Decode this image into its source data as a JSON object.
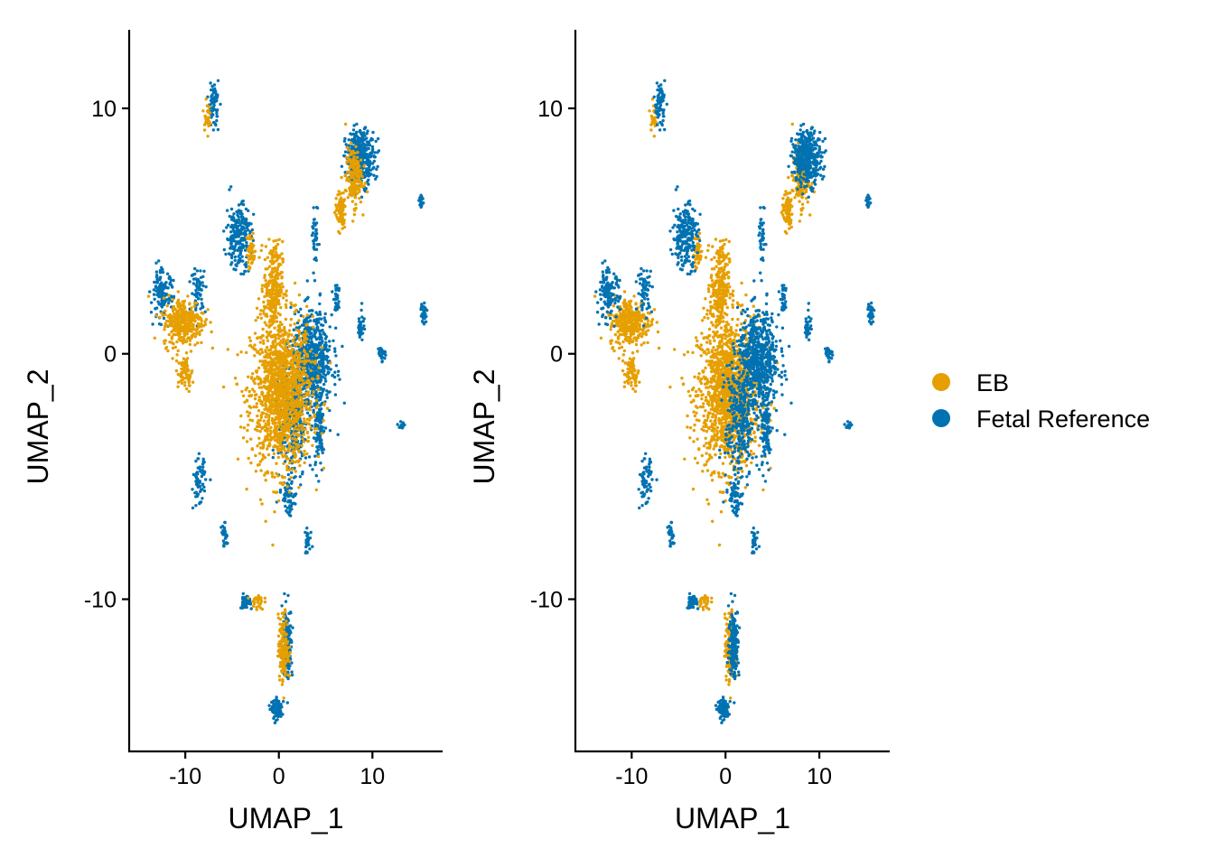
{
  "chart_data": [
    {
      "type": "scatter",
      "title": "",
      "xlabel": "UMAP_1",
      "ylabel": "UMAP_2",
      "xlim": [
        -16,
        17.5
      ],
      "ylim": [
        -16.2,
        13.2
      ],
      "xticks": [
        -10,
        0,
        10
      ],
      "yticks": [
        -10,
        0,
        10
      ],
      "draw_order": [
        "Fetal Reference",
        "EB"
      ],
      "grid": false,
      "legend": "none"
    },
    {
      "type": "scatter",
      "title": "",
      "xlabel": "UMAP_1",
      "ylabel": "UMAP_2",
      "xlim": [
        -16,
        17.5
      ],
      "ylim": [
        -16.2,
        13.2
      ],
      "xticks": [
        -10,
        0,
        10
      ],
      "yticks": [
        -10,
        0,
        10
      ],
      "draw_order": [
        "EB",
        "Fetal Reference"
      ],
      "grid": false,
      "legend": "right"
    }
  ],
  "series": [
    {
      "name": "EB",
      "color": "#E69F00",
      "clusters": [
        {
          "cx": 0.3,
          "cy": -1.6,
          "sx": 3.0,
          "sy": 2.8,
          "n": 1400
        },
        {
          "cx": -0.6,
          "cy": 2.8,
          "sx": 0.9,
          "sy": 1.6,
          "n": 260
        },
        {
          "cx": -10.2,
          "cy": 1.3,
          "sx": 2.0,
          "sy": 0.9,
          "n": 320
        },
        {
          "cx": -10.0,
          "cy": -0.8,
          "sx": 0.7,
          "sy": 0.6,
          "n": 70
        },
        {
          "cx": 8.0,
          "cy": 7.2,
          "sx": 0.8,
          "sy": 1.1,
          "n": 180
        },
        {
          "cx": 6.6,
          "cy": 5.8,
          "sx": 0.5,
          "sy": 0.7,
          "n": 90
        },
        {
          "cx": 0.5,
          "cy": -12.0,
          "sx": 0.5,
          "sy": 1.2,
          "n": 170
        },
        {
          "cx": -3.0,
          "cy": 4.2,
          "sx": 0.4,
          "sy": 0.7,
          "n": 50
        },
        {
          "cx": -7.7,
          "cy": 9.7,
          "sx": 0.3,
          "sy": 0.5,
          "n": 30
        },
        {
          "cx": -2.3,
          "cy": -10.1,
          "sx": 0.6,
          "sy": 0.3,
          "n": 30
        }
      ]
    },
    {
      "name": "Fetal Reference",
      "color": "#0072B2",
      "clusters": [
        {
          "cx": 3.5,
          "cy": -0.3,
          "sx": 2.0,
          "sy": 1.8,
          "n": 650
        },
        {
          "cx": 1.5,
          "cy": -2.8,
          "sx": 1.4,
          "sy": 2.2,
          "n": 260
        },
        {
          "cx": 8.7,
          "cy": 8.0,
          "sx": 1.4,
          "sy": 1.0,
          "n": 380
        },
        {
          "cx": -4.3,
          "cy": 4.8,
          "sx": 1.2,
          "sy": 1.2,
          "n": 230
        },
        {
          "cx": -12.5,
          "cy": 2.4,
          "sx": 1.1,
          "sy": 0.9,
          "n": 130
        },
        {
          "cx": -8.6,
          "cy": 2.6,
          "sx": 0.7,
          "sy": 0.8,
          "n": 60
        },
        {
          "cx": 0.9,
          "cy": -11.8,
          "sx": 0.5,
          "sy": 1.3,
          "n": 170
        },
        {
          "cx": -0.2,
          "cy": -14.5,
          "sx": 0.5,
          "sy": 0.35,
          "n": 120
        },
        {
          "cx": -7.0,
          "cy": 10.2,
          "sx": 0.5,
          "sy": 0.8,
          "n": 70
        },
        {
          "cx": -8.5,
          "cy": -5.3,
          "sx": 0.6,
          "sy": 0.9,
          "n": 70
        },
        {
          "cx": 1.0,
          "cy": -5.8,
          "sx": 0.6,
          "sy": 0.7,
          "n": 60
        },
        {
          "cx": 4.3,
          "cy": -3.2,
          "sx": 0.6,
          "sy": 1.6,
          "n": 110
        },
        {
          "cx": -3.6,
          "cy": -10.1,
          "sx": 0.5,
          "sy": 0.25,
          "n": 50
        },
        {
          "cx": -5.8,
          "cy": -7.4,
          "sx": 0.3,
          "sy": 0.4,
          "n": 25
        },
        {
          "cx": 3.1,
          "cy": -7.7,
          "sx": 0.4,
          "sy": 0.5,
          "n": 30
        },
        {
          "cx": 15.5,
          "cy": 1.7,
          "sx": 0.3,
          "sy": 0.4,
          "n": 25
        },
        {
          "cx": 15.2,
          "cy": 6.2,
          "sx": 0.2,
          "sy": 0.3,
          "n": 18
        },
        {
          "cx": 13.2,
          "cy": -2.9,
          "sx": 0.3,
          "sy": 0.15,
          "n": 15
        },
        {
          "cx": 8.8,
          "cy": 1.2,
          "sx": 0.3,
          "sy": 0.6,
          "n": 35
        },
        {
          "cx": 11.0,
          "cy": 0.0,
          "sx": 0.4,
          "sy": 0.3,
          "n": 28
        },
        {
          "cx": 6.2,
          "cy": 2.2,
          "sx": 0.3,
          "sy": 0.5,
          "n": 28
        },
        {
          "cx": 3.9,
          "cy": 4.6,
          "sx": 0.3,
          "sy": 1.0,
          "n": 40
        }
      ]
    }
  ],
  "legend": {
    "items": [
      {
        "label": "EB",
        "color": "#E69F00"
      },
      {
        "label": "Fetal Reference",
        "color": "#0072B2"
      }
    ]
  }
}
